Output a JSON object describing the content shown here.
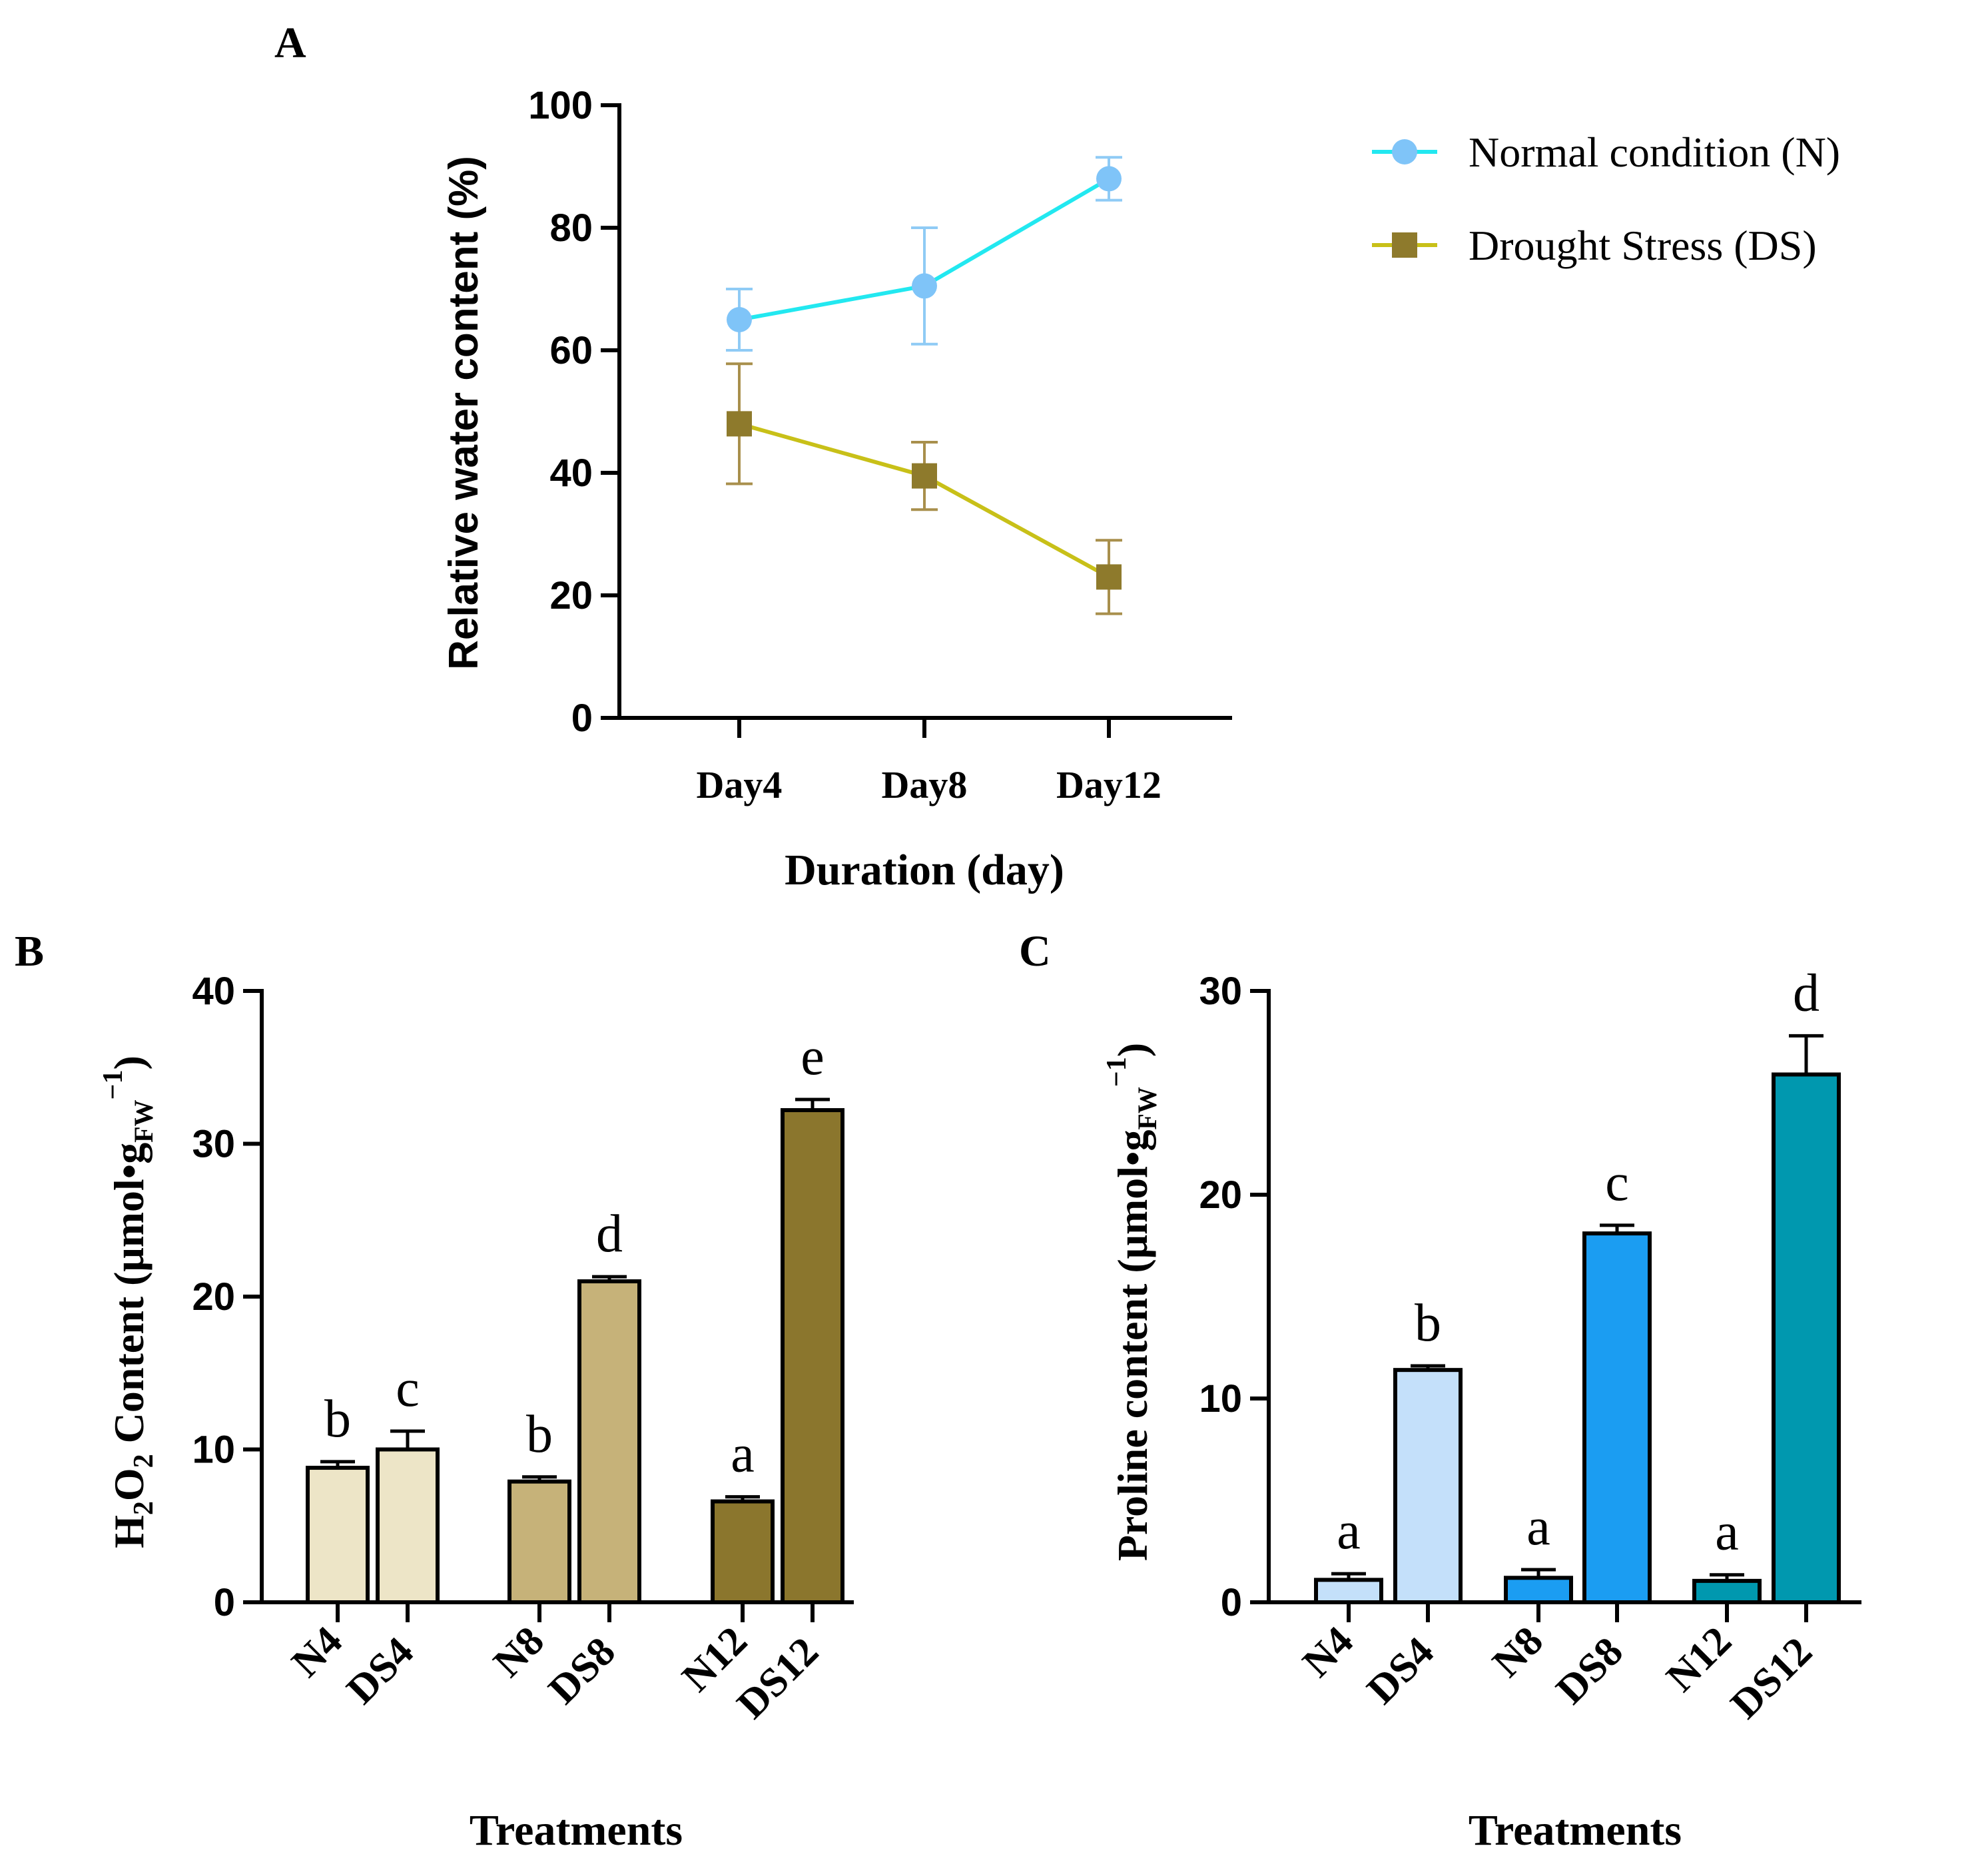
{
  "chart_data": [
    {
      "panel": "A",
      "type": "line",
      "categories": [
        "Day4",
        "Day8",
        "Day12"
      ],
      "xlabel": "Duration (day)",
      "ylabel": "Relative water content (%)",
      "ylim": [
        0,
        100
      ],
      "yticks": [
        "0",
        "20",
        "40",
        "60",
        "80",
        "100"
      ],
      "legend_position": "top-right",
      "series": [
        {
          "name": "Normal condition (N)",
          "marker": "circle",
          "line_color": "#22E8F0",
          "marker_color": "#7FC4F8",
          "values": [
            65,
            70.5,
            88
          ],
          "errors": [
            5,
            9.5,
            3.5
          ]
        },
        {
          "name": "Drought Stress (DS)",
          "marker": "square",
          "line_color": "#C8C018",
          "marker_color": "#8E7A2C",
          "values": [
            48,
            39.5,
            23
          ],
          "errors": [
            9.8,
            5.5,
            6
          ]
        }
      ]
    },
    {
      "panel": "B",
      "type": "bar",
      "categories": [
        "N4",
        "DS4",
        "N8",
        "DS8",
        "N12",
        "DS12"
      ],
      "values": [
        8.8,
        10,
        7.9,
        21,
        6.6,
        32.2
      ],
      "errors": [
        0.4,
        1.2,
        0.3,
        0.3,
        0.3,
        0.7
      ],
      "letters": [
        "b",
        "c",
        "b",
        "d",
        "a",
        "e"
      ],
      "colors": [
        "#EDE5C7",
        "#EDE5C7",
        "#C6B279",
        "#C6B279",
        "#8B762D",
        "#8B762D"
      ],
      "ylabel_prefix": "H",
      "ylabel_sub1": "2",
      "ylabel_mid": "O",
      "ylabel_sub2": "2",
      "ylabel_main": " Content (μmol•g",
      "ylabel_sub3": "FW",
      "ylabel_sup": "−1",
      "ylabel_close": ")",
      "xlabel": "Treatments",
      "ylim": [
        0,
        40
      ],
      "yticks": [
        "0",
        "10",
        "20",
        "30",
        "40"
      ]
    },
    {
      "panel": "C",
      "type": "bar",
      "categories": [
        "N4",
        "DS4",
        "N8",
        "DS8",
        "N12",
        "DS12"
      ],
      "values": [
        1.1,
        11.4,
        1.2,
        18.1,
        1.05,
        25.9
      ],
      "errors": [
        0.3,
        0.2,
        0.4,
        0.4,
        0.3,
        1.9
      ],
      "letters": [
        "a",
        "b",
        "a",
        "c",
        "a",
        "d"
      ],
      "colors": [
        "#C4E0FA",
        "#C4E0FA",
        "#1B9DF2",
        "#1B9DF2",
        "#0098AF",
        "#0098AF"
      ],
      "ylabel_main": "Proline content (μmol•g",
      "ylabel_sub3": "FW",
      "ylabel_sup": "−1",
      "ylabel_close": ")",
      "xlabel": "Treatments",
      "ylim": [
        0,
        30
      ],
      "yticks": [
        "0",
        "10",
        "20",
        "30"
      ]
    }
  ]
}
